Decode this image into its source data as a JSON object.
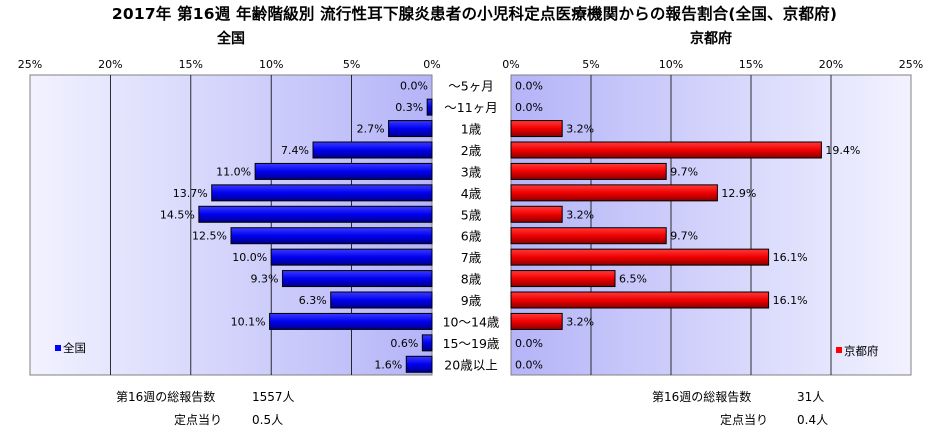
{
  "title": "2017年 第16週 年齢階級別 流行性耳下腺炎患者の小児科定点医療機関からの報告割合(全国、京都府)",
  "chart_data": [
    {
      "type": "bar",
      "orientation": "horizontal",
      "title": "全国",
      "categories": [
        "～5ヶ月",
        "～11ヶ月",
        "1歳",
        "2歳",
        "3歳",
        "4歳",
        "5歳",
        "6歳",
        "7歳",
        "8歳",
        "9歳",
        "10～14歳",
        "15～19歳",
        "20歳以上"
      ],
      "series": [
        {
          "name": "全国",
          "values": [
            0.0,
            0.3,
            2.7,
            7.4,
            11.0,
            13.7,
            14.5,
            12.5,
            10.0,
            9.3,
            6.3,
            10.1,
            0.6,
            1.6
          ],
          "color": "#0000ff"
        }
      ],
      "data_labels": [
        "0.0%",
        "0.3%",
        "2.7%",
        "7.4%",
        "11.0%",
        "13.7%",
        "14.5%",
        "12.5%",
        "10.0%",
        "9.3%",
        "6.3%",
        "10.1%",
        "0.6%",
        "1.6%"
      ],
      "xlim": [
        0,
        25
      ],
      "x_direction": "reversed",
      "xticks": [
        "25%",
        "20%",
        "15%",
        "10%",
        "5%",
        "0%"
      ],
      "grid": true,
      "legend": "bottom-left",
      "plot_background": "#ccccff"
    },
    {
      "type": "bar",
      "orientation": "horizontal",
      "title": "京都府",
      "categories": [
        "～5ヶ月",
        "～11ヶ月",
        "1歳",
        "2歳",
        "3歳",
        "4歳",
        "5歳",
        "6歳",
        "7歳",
        "8歳",
        "9歳",
        "10～14歳",
        "15～19歳",
        "20歳以上"
      ],
      "series": [
        {
          "name": "京都府",
          "values": [
            0.0,
            0.0,
            3.2,
            19.4,
            9.7,
            12.9,
            3.2,
            9.7,
            16.1,
            6.5,
            16.1,
            3.2,
            0.0,
            0.0
          ],
          "color": "#ff0000"
        }
      ],
      "data_labels": [
        "0.0%",
        "0.0%",
        "3.2%",
        "19.4%",
        "9.7%",
        "12.9%",
        "3.2%",
        "9.7%",
        "16.1%",
        "6.5%",
        "16.1%",
        "3.2%",
        "0.0%",
        "0.0%"
      ],
      "xlim": [
        0,
        25
      ],
      "xticks": [
        "0%",
        "5%",
        "10%",
        "15%",
        "20%",
        "25%"
      ],
      "grid": true,
      "legend": "bottom-right",
      "plot_background": "#ccccff"
    }
  ],
  "footer": {
    "national_total_label": "第16週の総報告数",
    "national_total_value": "1557人",
    "national_per_site_label": "定点当り",
    "national_per_site_value": "0.5人",
    "kyoto_total_label": "第16週の総報告数",
    "kyoto_total_value": "31人",
    "kyoto_per_site_label": "定点当り",
    "kyoto_per_site_value": "0.4人"
  }
}
